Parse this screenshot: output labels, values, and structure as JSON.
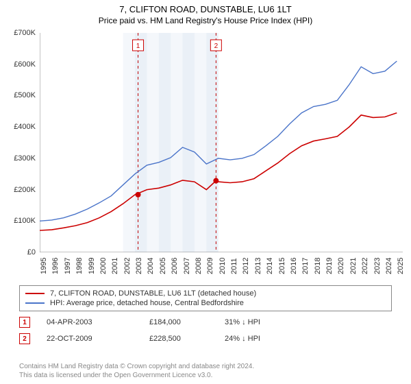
{
  "title": "7, CLIFTON ROAD, DUNSTABLE, LU6 1LT",
  "subtitle": "Price paid vs. HM Land Registry's House Price Index (HPI)",
  "chart": {
    "type": "line",
    "background_color": "#ffffff",
    "grid_band_color": "#eaf0f7",
    "vline_color": "#c00000",
    "vline_dash": "4,4",
    "axis_color": "#888888",
    "title_fontsize": 13,
    "label_fontsize": 11,
    "xlim": [
      1995,
      2025.5
    ],
    "ylim": [
      0,
      700000
    ],
    "ytick_step": 100000,
    "ytick_labels": [
      "£0",
      "£100K",
      "£200K",
      "£300K",
      "£400K",
      "£500K",
      "£600K",
      "£700K"
    ],
    "xtick_step": 1,
    "xtick_labels": [
      "1995",
      "1996",
      "1997",
      "1998",
      "1999",
      "2000",
      "2001",
      "2002",
      "2003",
      "2004",
      "2005",
      "2006",
      "2007",
      "2008",
      "2009",
      "2010",
      "2011",
      "2012",
      "2013",
      "2014",
      "2015",
      "2016",
      "2017",
      "2018",
      "2019",
      "2020",
      "2021",
      "2022",
      "2023",
      "2024",
      "2025"
    ],
    "grid_band_columns": [
      2002,
      2003,
      2004,
      2005,
      2006,
      2007,
      2008,
      2009
    ],
    "series": [
      {
        "name": "property",
        "label": "7, CLIFTON ROAD, DUNSTABLE, LU6 1LT (detached house)",
        "color": "#cc0000",
        "line_width": 1.6,
        "points": [
          [
            1995,
            70000
          ],
          [
            1996,
            72000
          ],
          [
            1997,
            78000
          ],
          [
            1998,
            85000
          ],
          [
            1999,
            95000
          ],
          [
            2000,
            110000
          ],
          [
            2001,
            130000
          ],
          [
            2002,
            155000
          ],
          [
            2003,
            184000
          ],
          [
            2004,
            200000
          ],
          [
            2005,
            205000
          ],
          [
            2006,
            215000
          ],
          [
            2007,
            230000
          ],
          [
            2008,
            225000
          ],
          [
            2009,
            200000
          ],
          [
            2009.81,
            228500
          ],
          [
            2010,
            225000
          ],
          [
            2011,
            222000
          ],
          [
            2012,
            225000
          ],
          [
            2013,
            235000
          ],
          [
            2014,
            260000
          ],
          [
            2015,
            285000
          ],
          [
            2016,
            315000
          ],
          [
            2017,
            340000
          ],
          [
            2018,
            355000
          ],
          [
            2019,
            362000
          ],
          [
            2020,
            370000
          ],
          [
            2021,
            400000
          ],
          [
            2022,
            438000
          ],
          [
            2023,
            430000
          ],
          [
            2024,
            432000
          ],
          [
            2025,
            445000
          ]
        ]
      },
      {
        "name": "hpi",
        "label": "HPI: Average price, detached house, Central Bedfordshire",
        "color": "#4a74c9",
        "line_width": 1.4,
        "points": [
          [
            1995,
            100000
          ],
          [
            1996,
            103000
          ],
          [
            1997,
            110000
          ],
          [
            1998,
            122000
          ],
          [
            1999,
            138000
          ],
          [
            2000,
            158000
          ],
          [
            2001,
            180000
          ],
          [
            2002,
            215000
          ],
          [
            2003,
            250000
          ],
          [
            2004,
            278000
          ],
          [
            2005,
            287000
          ],
          [
            2006,
            302000
          ],
          [
            2007,
            335000
          ],
          [
            2008,
            320000
          ],
          [
            2009,
            282000
          ],
          [
            2010,
            300000
          ],
          [
            2011,
            295000
          ],
          [
            2012,
            300000
          ],
          [
            2013,
            312000
          ],
          [
            2014,
            340000
          ],
          [
            2015,
            370000
          ],
          [
            2016,
            410000
          ],
          [
            2017,
            445000
          ],
          [
            2018,
            465000
          ],
          [
            2019,
            472000
          ],
          [
            2020,
            485000
          ],
          [
            2021,
            535000
          ],
          [
            2022,
            592000
          ],
          [
            2023,
            570000
          ],
          [
            2024,
            578000
          ],
          [
            2025,
            610000
          ]
        ]
      }
    ],
    "markers": [
      {
        "n": 1,
        "x": 2003.26,
        "y": 184000,
        "color": "#cc0000"
      },
      {
        "n": 2,
        "x": 2009.81,
        "y": 228500,
        "color": "#cc0000"
      }
    ]
  },
  "legend": {
    "property_label": "7, CLIFTON ROAD, DUNSTABLE, LU6 1LT (detached house)",
    "hpi_label": "HPI: Average price, detached house, Central Bedfordshire"
  },
  "transactions": [
    {
      "n": "1",
      "date": "04-APR-2003",
      "price": "£184,000",
      "pct": "31% ↓ HPI"
    },
    {
      "n": "2",
      "date": "22-OCT-2009",
      "price": "£228,500",
      "pct": "24% ↓ HPI"
    }
  ],
  "footer": {
    "line1": "Contains HM Land Registry data © Crown copyright and database right 2024.",
    "line2": "This data is licensed under the Open Government Licence v3.0."
  }
}
